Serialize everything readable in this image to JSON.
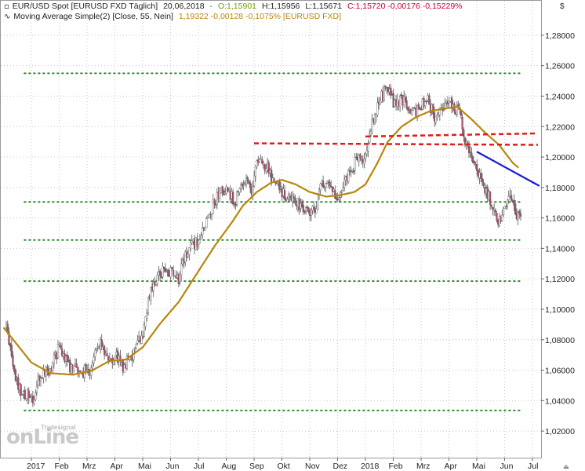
{
  "legend": {
    "instrument": "EUR/USD Spot [EURUSD FXD  Täglich]",
    "date": "20,06,2018",
    "dash": "-",
    "open": "O:1,15901",
    "high": "H:1,15956",
    "low": "L:1,15671",
    "close_change": "C:1,15720 -0,00176 -0,15229%",
    "ma_name": "Moving Average Simple(2) [Close, 55, Nein]",
    "ma_value": "1,19322 -0,00128 -0,1075% [EURUSD FXD]"
  },
  "currency_symbol": "$",
  "watermark": {
    "main": "onLine",
    "sub": "Tradesignal"
  },
  "corner_marker": "⏏",
  "colors": {
    "candle_up": "#ffffff",
    "candle_down": "#b14a6a",
    "candle_wick": "#555555",
    "moving_average": "#b8860b",
    "support_resistance_dotted": "#2e8b2e",
    "resistance_dashed": "#e31a1a",
    "trendline": "#1a1ad6",
    "grid": "#c8c8c8",
    "legend_open": "#7a9a00",
    "legend_close": "#cc0033",
    "legend_ma_value": "#b8860b"
  },
  "chart_data": {
    "type": "candlestick",
    "title": "EUR/USD Spot [EURUSD FXD  Täglich]",
    "y_axis": {
      "ylim": [
        1.01,
        1.29
      ],
      "side": "right",
      "tick_labels": [
        "1,02000",
        "1,04000",
        "1,06000",
        "1,08000",
        "1,10000",
        "1,12000",
        "1,14000",
        "1,16000",
        "1,18000",
        "1,20000",
        "1,22000",
        "1,24000",
        "1,26000",
        "1,28000"
      ],
      "tick_values": [
        1.02,
        1.04,
        1.06,
        1.08,
        1.1,
        1.12,
        1.14,
        1.16,
        1.18,
        1.2,
        1.22,
        1.24,
        1.26,
        1.28
      ]
    },
    "x_axis": {
      "tick_labels": [
        "2017",
        "Feb",
        "Mrz",
        "Apr",
        "Mai",
        "Jun",
        "Jul",
        "Aug",
        "Sep",
        "Okt",
        "Nov",
        "Dez",
        "2018",
        "Feb",
        "Mrz",
        "Apr",
        "Mai",
        "Jun",
        "Jul"
      ],
      "tick_months": [
        0,
        1,
        2,
        3,
        4,
        5,
        6,
        7,
        8,
        9,
        10,
        11,
        12,
        13,
        14,
        15,
        16,
        17,
        18
      ]
    },
    "grid": true,
    "close_anchors": [
      {
        "m": -0.9,
        "c": 1.088
      },
      {
        "m": -0.5,
        "c": 1.05
      },
      {
        "m": 0.0,
        "c": 1.04
      },
      {
        "m": 0.3,
        "c": 1.055
      },
      {
        "m": 0.7,
        "c": 1.062
      },
      {
        "m": 1.0,
        "c": 1.075
      },
      {
        "m": 1.4,
        "c": 1.062
      },
      {
        "m": 1.8,
        "c": 1.058
      },
      {
        "m": 2.1,
        "c": 1.06
      },
      {
        "m": 2.5,
        "c": 1.08
      },
      {
        "m": 2.8,
        "c": 1.066
      },
      {
        "m": 3.0,
        "c": 1.07
      },
      {
        "m": 3.3,
        "c": 1.062
      },
      {
        "m": 3.6,
        "c": 1.068
      },
      {
        "m": 4.0,
        "c": 1.085
      },
      {
        "m": 4.3,
        "c": 1.115
      },
      {
        "m": 4.7,
        "c": 1.125
      },
      {
        "m": 5.0,
        "c": 1.124
      },
      {
        "m": 5.3,
        "c": 1.12
      },
      {
        "m": 5.6,
        "c": 1.14
      },
      {
        "m": 6.0,
        "c": 1.145
      },
      {
        "m": 6.3,
        "c": 1.158
      },
      {
        "m": 6.6,
        "c": 1.172
      },
      {
        "m": 7.0,
        "c": 1.18
      },
      {
        "m": 7.3,
        "c": 1.17
      },
      {
        "m": 7.6,
        "c": 1.185
      },
      {
        "m": 7.9,
        "c": 1.178
      },
      {
        "m": 8.1,
        "c": 1.198
      },
      {
        "m": 8.4,
        "c": 1.195
      },
      {
        "m": 8.7,
        "c": 1.185
      },
      {
        "m": 9.0,
        "c": 1.175
      },
      {
        "m": 9.3,
        "c": 1.172
      },
      {
        "m": 9.6,
        "c": 1.17
      },
      {
        "m": 9.9,
        "c": 1.162
      },
      {
        "m": 10.2,
        "c": 1.168
      },
      {
        "m": 10.5,
        "c": 1.185
      },
      {
        "m": 10.8,
        "c": 1.18
      },
      {
        "m": 11.0,
        "c": 1.175
      },
      {
        "m": 11.3,
        "c": 1.185
      },
      {
        "m": 11.6,
        "c": 1.195
      },
      {
        "m": 12.0,
        "c": 1.2
      },
      {
        "m": 12.2,
        "c": 1.22
      },
      {
        "m": 12.5,
        "c": 1.238
      },
      {
        "m": 12.8,
        "c": 1.245
      },
      {
        "m": 13.0,
        "c": 1.235
      },
      {
        "m": 13.3,
        "c": 1.24
      },
      {
        "m": 13.6,
        "c": 1.228
      },
      {
        "m": 13.9,
        "c": 1.232
      },
      {
        "m": 14.2,
        "c": 1.238
      },
      {
        "m": 14.5,
        "c": 1.226
      },
      {
        "m": 14.8,
        "c": 1.232
      },
      {
        "m": 15.1,
        "c": 1.236
      },
      {
        "m": 15.4,
        "c": 1.228
      },
      {
        "m": 15.6,
        "c": 1.21
      },
      {
        "m": 15.8,
        "c": 1.2
      },
      {
        "m": 16.0,
        "c": 1.192
      },
      {
        "m": 16.3,
        "c": 1.18
      },
      {
        "m": 16.6,
        "c": 1.165
      },
      {
        "m": 16.8,
        "c": 1.158
      },
      {
        "m": 17.0,
        "c": 1.168
      },
      {
        "m": 17.2,
        "c": 1.176
      },
      {
        "m": 17.4,
        "c": 1.165
      },
      {
        "m": 17.6,
        "c": 1.158
      }
    ],
    "moving_average_anchors": [
      {
        "m": -1.0,
        "c": 1.088
      },
      {
        "m": 0.0,
        "c": 1.065
      },
      {
        "m": 0.7,
        "c": 1.058
      },
      {
        "m": 1.5,
        "c": 1.057
      },
      {
        "m": 2.2,
        "c": 1.06
      },
      {
        "m": 2.8,
        "c": 1.066
      },
      {
        "m": 3.4,
        "c": 1.067
      },
      {
        "m": 4.0,
        "c": 1.075
      },
      {
        "m": 4.6,
        "c": 1.09
      },
      {
        "m": 5.3,
        "c": 1.105
      },
      {
        "m": 6.0,
        "c": 1.125
      },
      {
        "m": 6.6,
        "c": 1.142
      },
      {
        "m": 7.2,
        "c": 1.157
      },
      {
        "m": 7.6,
        "c": 1.168
      },
      {
        "m": 8.1,
        "c": 1.177
      },
      {
        "m": 8.6,
        "c": 1.183
      },
      {
        "m": 9.0,
        "c": 1.185
      },
      {
        "m": 9.5,
        "c": 1.182
      },
      {
        "m": 10.0,
        "c": 1.177
      },
      {
        "m": 10.6,
        "c": 1.174
      },
      {
        "m": 11.1,
        "c": 1.175
      },
      {
        "m": 11.6,
        "c": 1.177
      },
      {
        "m": 12.0,
        "c": 1.182
      },
      {
        "m": 12.4,
        "c": 1.195
      },
      {
        "m": 12.8,
        "c": 1.21
      },
      {
        "m": 13.3,
        "c": 1.22
      },
      {
        "m": 13.8,
        "c": 1.226
      },
      {
        "m": 14.3,
        "c": 1.23
      },
      {
        "m": 14.9,
        "c": 1.232
      },
      {
        "m": 15.3,
        "c": 1.233
      },
      {
        "m": 15.8,
        "c": 1.225
      },
      {
        "m": 16.3,
        "c": 1.216
      },
      {
        "m": 16.8,
        "c": 1.208
      },
      {
        "m": 17.3,
        "c": 1.196
      },
      {
        "m": 17.5,
        "c": 1.193
      }
    ],
    "horizontal_dotted_levels": [
      {
        "value": 1.255,
        "m_from": -0.25,
        "m_to": 17.6
      },
      {
        "value": 1.1705,
        "m_from": -0.25,
        "m_to": 17.6
      },
      {
        "value": 1.1455,
        "m_from": -0.25,
        "m_to": 17.6
      },
      {
        "value": 1.1185,
        "m_from": -0.25,
        "m_to": 17.6
      },
      {
        "value": 1.0335,
        "m_from": -0.25,
        "m_to": 17.6
      }
    ],
    "dashed_resistance_lines": [
      {
        "from": {
          "m": 8.0,
          "v": 1.209
        },
        "to": {
          "m": 18.5,
          "v": 1.208
        }
      },
      {
        "from": {
          "m": 12.0,
          "v": 1.2135
        },
        "to": {
          "m": 18.5,
          "v": 1.2155
        }
      }
    ],
    "trendline": {
      "from": {
        "m": 16.0,
        "v": 1.2035
      },
      "to": {
        "m": 18.25,
        "v": 1.181
      }
    }
  }
}
